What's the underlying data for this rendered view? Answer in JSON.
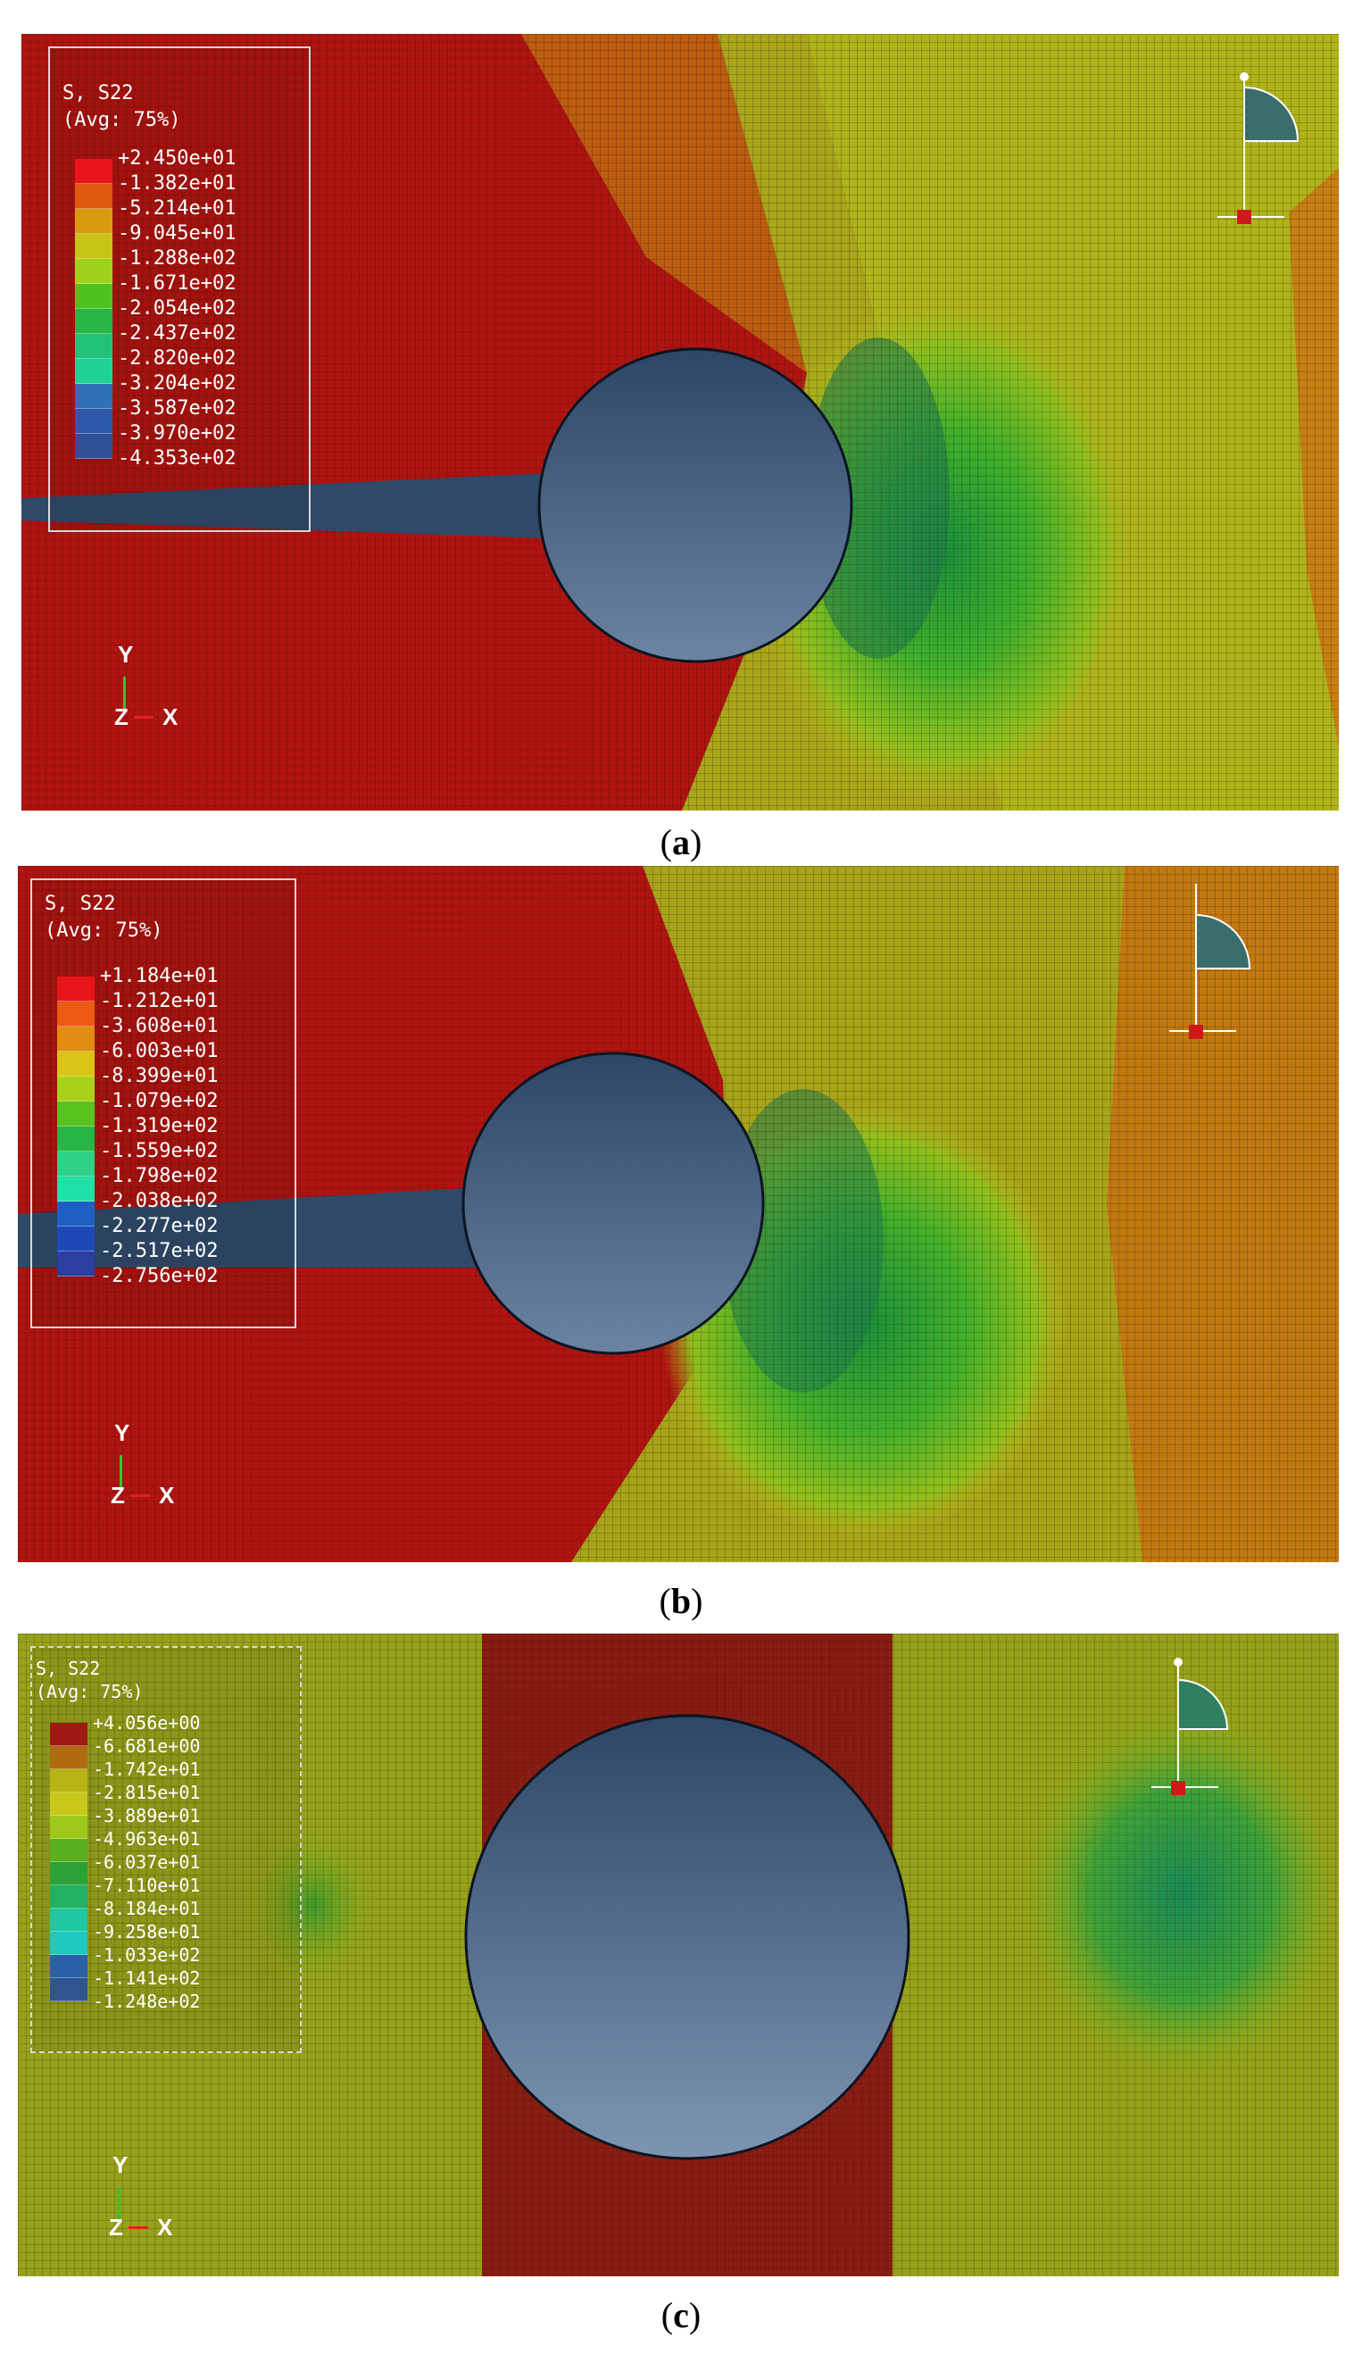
{
  "panels": [
    {
      "caption_letter": "a",
      "legend": {
        "title": "S, S22",
        "subtitle": "(Avg: 75%)",
        "values": [
          "+2.450e+01",
          "-1.382e+01",
          "-5.214e+01",
          "-9.045e+01",
          "-1.288e+02",
          "-1.671e+02",
          "-2.054e+02",
          "-2.437e+02",
          "-2.820e+02",
          "-3.204e+02",
          "-3.587e+02",
          "-3.970e+02",
          "-4.353e+02"
        ],
        "colors": [
          "#e8161a",
          "#dd5a10",
          "#d99a12",
          "#c7c417",
          "#9fd21a",
          "#4fc21e",
          "#27b545",
          "#23c27a",
          "#1fd394",
          "#2f6fb4",
          "#2d59a8",
          "#2f4f96"
        ]
      },
      "triad": {
        "y": "Y",
        "z": "Z",
        "x": "X"
      }
    },
    {
      "caption_letter": "b",
      "legend": {
        "title": "S, S22",
        "subtitle": "(Avg: 75%)",
        "values": [
          "+1.184e+01",
          "-1.212e+01",
          "-3.608e+01",
          "-6.003e+01",
          "-8.399e+01",
          "-1.079e+02",
          "-1.319e+02",
          "-1.559e+02",
          "-1.798e+02",
          "-2.038e+02",
          "-2.277e+02",
          "-2.517e+02",
          "-2.756e+02"
        ],
        "colors": [
          "#e8161a",
          "#ec5a12",
          "#e08d12",
          "#d9c417",
          "#a8d21a",
          "#58c21e",
          "#27b545",
          "#2fd088",
          "#1fe0a6",
          "#1f5fc4",
          "#1d48b8",
          "#2a3fa0"
        ]
      },
      "triad": {
        "y": "Y",
        "z": "Z",
        "x": "X"
      }
    },
    {
      "caption_letter": "c",
      "legend": {
        "title": "S, S22",
        "subtitle": "(Avg: 75%)",
        "values": [
          "+4.056e+00",
          "-6.681e+00",
          "-1.742e+01",
          "-2.815e+01",
          "-3.889e+01",
          "-4.963e+01",
          "-6.037e+01",
          "-7.110e+01",
          "-8.184e+01",
          "-9.258e+01",
          "-1.033e+02",
          "-1.141e+02",
          "-1.248e+02"
        ],
        "colors": [
          "#a01a14",
          "#b06a10",
          "#b7b414",
          "#c8c81a",
          "#9ec81a",
          "#58b01e",
          "#2aa238",
          "#23b060",
          "#1fc8a0",
          "#1fc8c0",
          "#2a60a8",
          "#2f5490"
        ]
      },
      "triad": {
        "y": "Y",
        "z": "Z",
        "x": "X"
      }
    }
  ]
}
